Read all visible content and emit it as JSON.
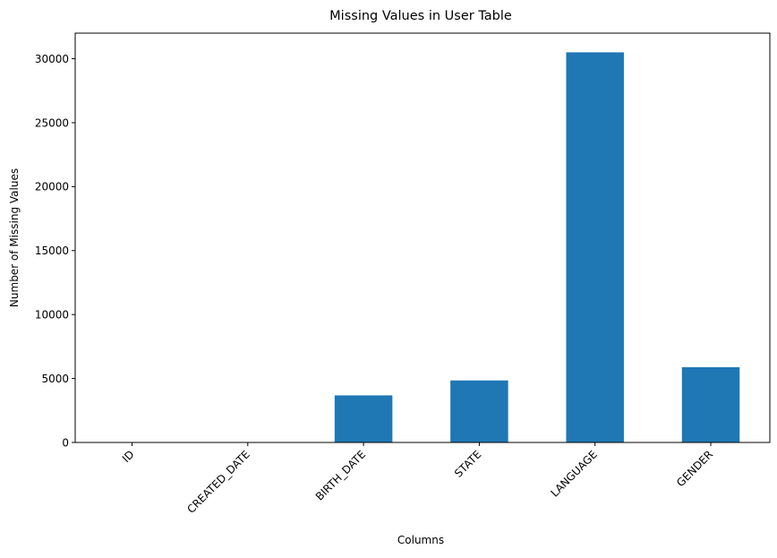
{
  "chart_data": {
    "type": "bar",
    "title": "Missing Values in User Table",
    "xlabel": "Columns",
    "ylabel": "Number of Missing Values",
    "categories": [
      "ID",
      "CREATED_DATE",
      "BIRTH_DATE",
      "STATE",
      "LANGUAGE",
      "GENDER"
    ],
    "values": [
      0,
      0,
      3680,
      4850,
      30500,
      5880
    ],
    "ylim": [
      0,
      32000
    ],
    "yticks": [
      0,
      5000,
      10000,
      15000,
      20000,
      25000,
      30000
    ],
    "ytick_labels": [
      "0",
      "5000",
      "10000",
      "15000",
      "20000",
      "25000",
      "30000"
    ],
    "bar_color": "#1f77b4",
    "grid": false,
    "legend": "none",
    "xtick_rotation": "45"
  }
}
